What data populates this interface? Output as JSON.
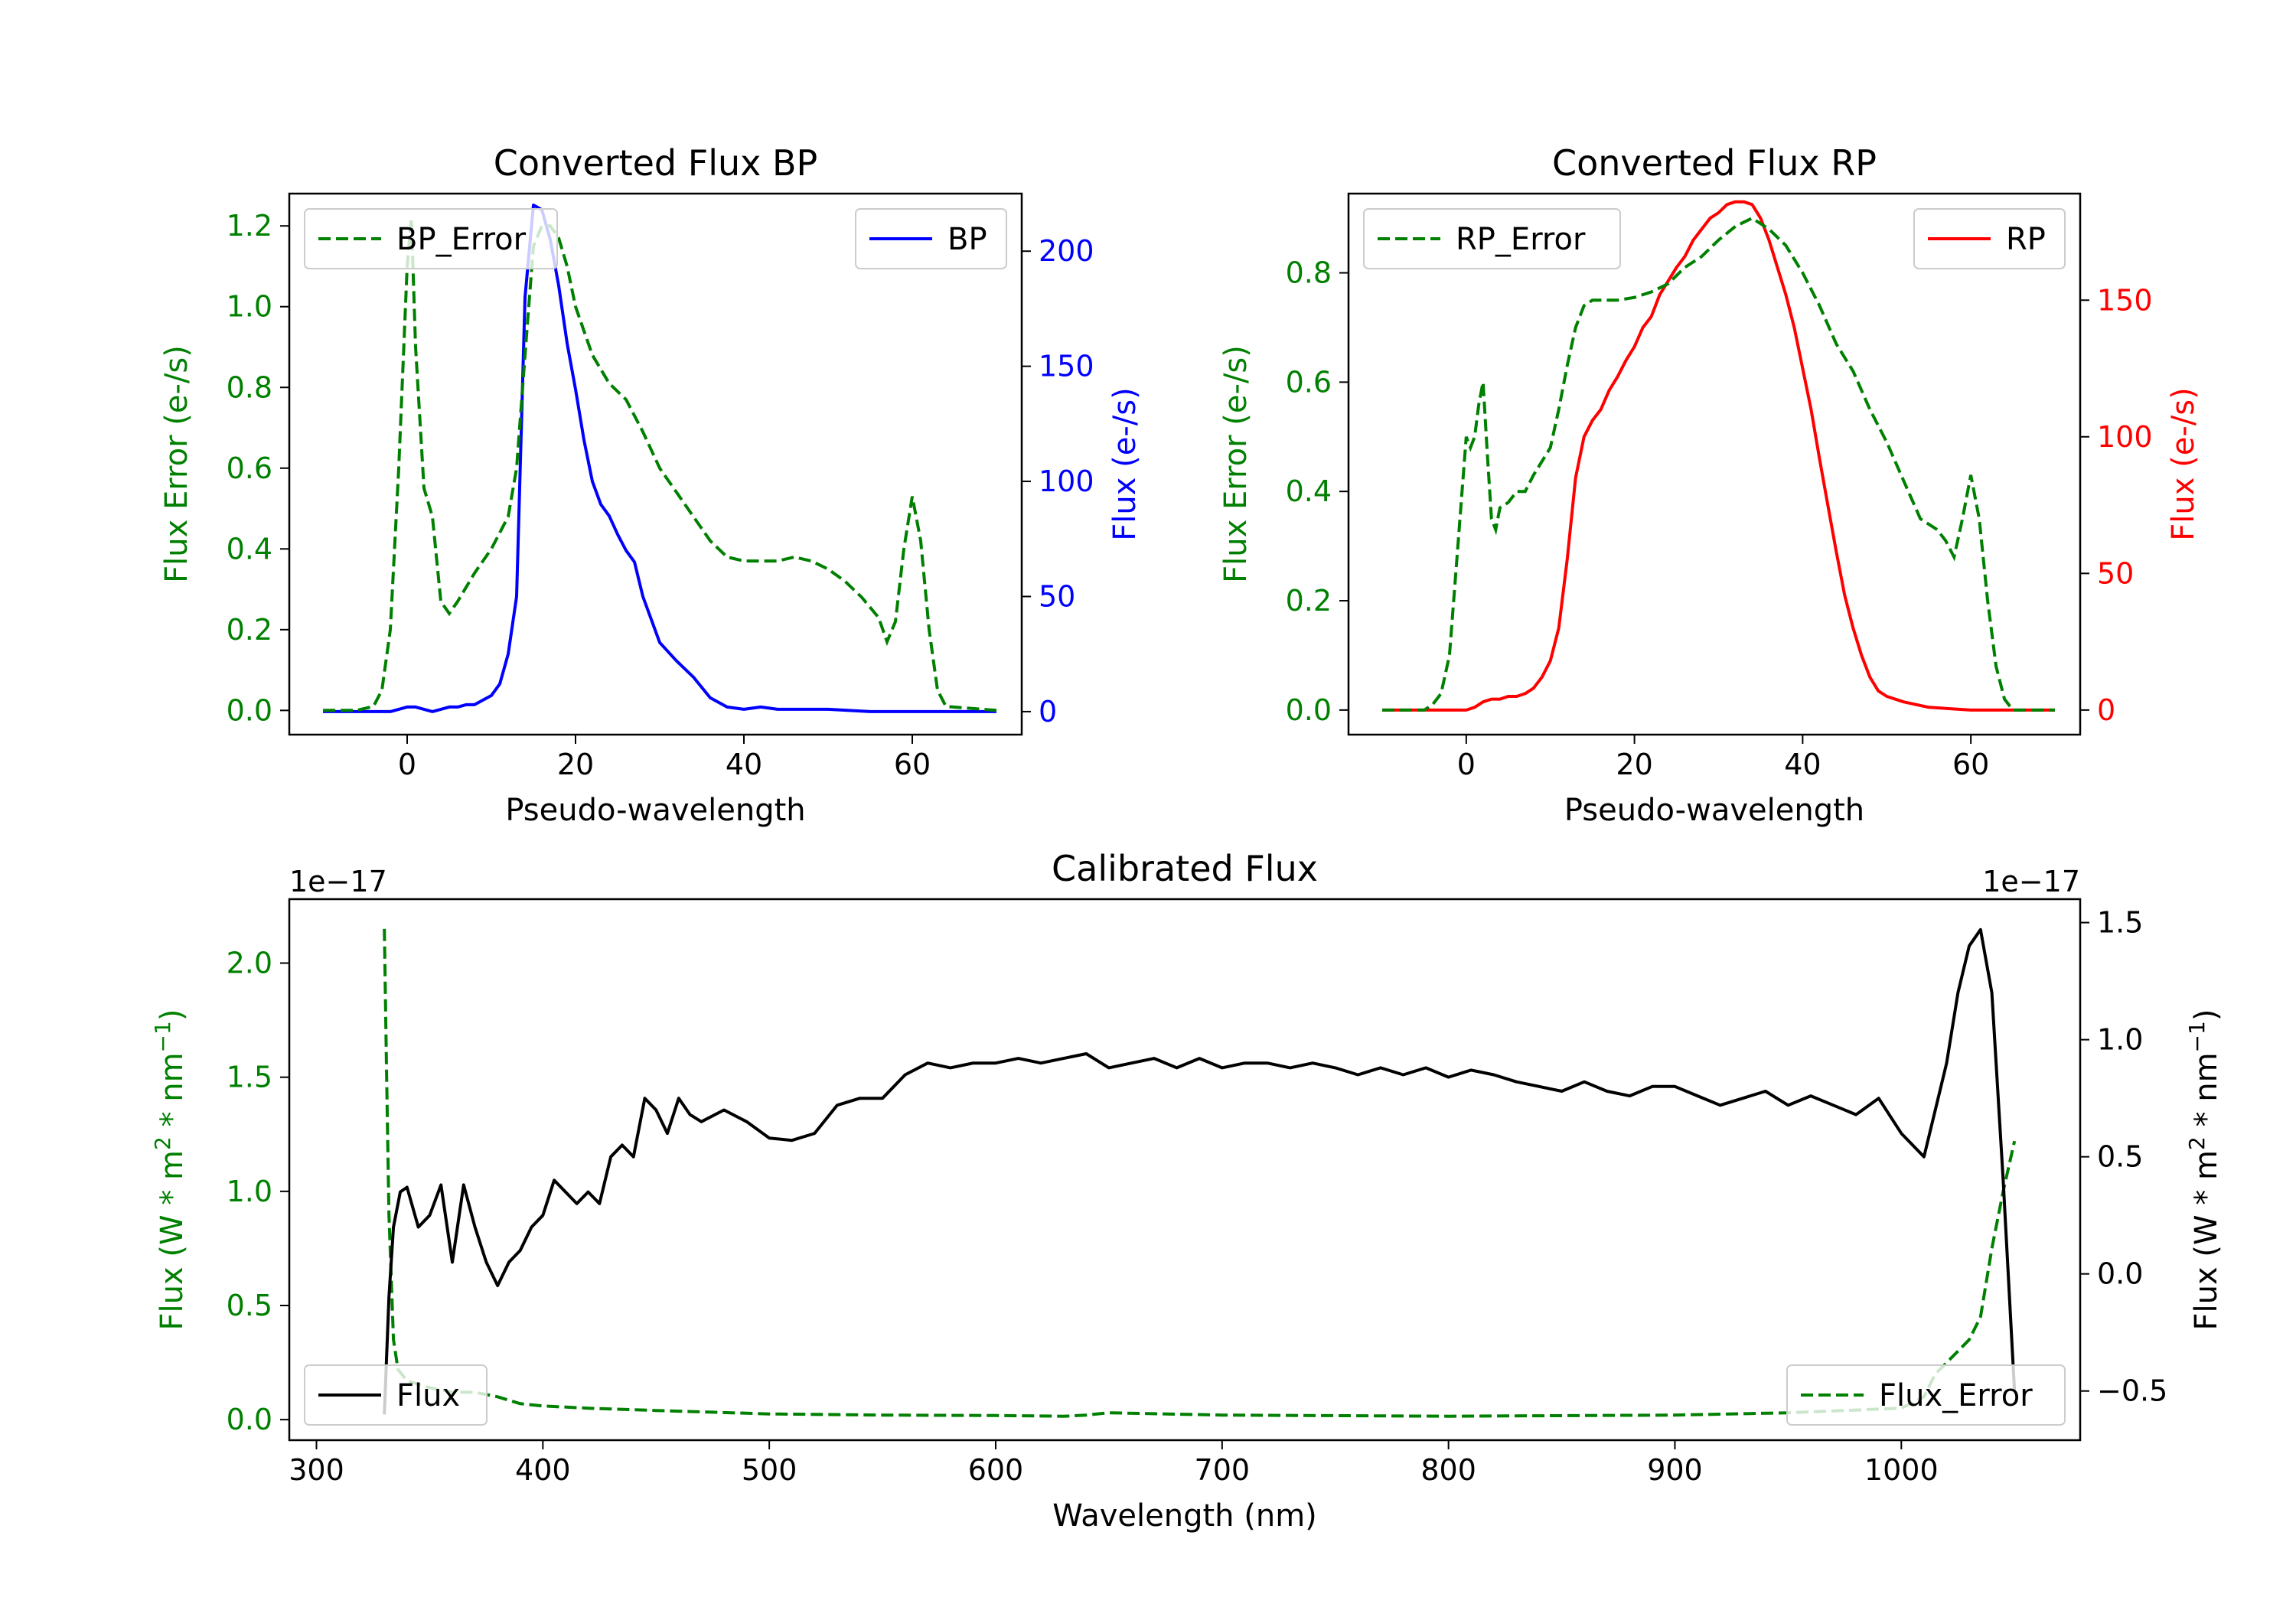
{
  "colors": {
    "bp": "#0000ff",
    "rp": "#ff0000",
    "error": "#008000",
    "flux": "#000000"
  },
  "chart_data": [
    {
      "type": "line",
      "title": "Converted Flux BP",
      "xlabel": "Pseudo-wavelength",
      "ylabel_left": "Flux Error (e-/s)",
      "ylabel_right": "Flux (e-/s)",
      "xlim": [
        -14,
        73
      ],
      "ylim_left": [
        -0.06,
        1.28
      ],
      "ylim_right": [
        -10,
        225
      ],
      "xticks": [
        0,
        20,
        40,
        60
      ],
      "yticks_left": [
        0.0,
        0.2,
        0.4,
        0.6,
        0.8,
        1.0,
        1.2
      ],
      "yticks_right": [
        0,
        50,
        100,
        150,
        200
      ],
      "legend": {
        "left": "BP_Error",
        "right": "BP"
      },
      "series_error": {
        "name": "BP_Error",
        "x": [
          -10,
          -6,
          -4,
          -3,
          -2,
          -1,
          0,
          0.5,
          1,
          2,
          3,
          4,
          5,
          6,
          8,
          10,
          12,
          13,
          14,
          15,
          16,
          17,
          18,
          19,
          20,
          22,
          24,
          26,
          28,
          30,
          32,
          34,
          36,
          38,
          40,
          42,
          44,
          46,
          48,
          50,
          52,
          54,
          56,
          57,
          58,
          59,
          60,
          61,
          62,
          63,
          64,
          70
        ],
        "y": [
          0,
          0,
          0.01,
          0.05,
          0.2,
          0.6,
          1.1,
          1.22,
          0.9,
          0.55,
          0.48,
          0.27,
          0.24,
          0.27,
          0.34,
          0.4,
          0.48,
          0.6,
          0.88,
          1.15,
          1.2,
          1.2,
          1.17,
          1.1,
          1.0,
          0.88,
          0.81,
          0.77,
          0.69,
          0.6,
          0.54,
          0.48,
          0.42,
          0.38,
          0.37,
          0.37,
          0.37,
          0.38,
          0.37,
          0.35,
          0.32,
          0.28,
          0.23,
          0.17,
          0.22,
          0.4,
          0.53,
          0.42,
          0.2,
          0.05,
          0.01,
          0
        ]
      },
      "series_flux": {
        "name": "BP",
        "x": [
          -10,
          -5,
          -2,
          0,
          1,
          2,
          3,
          4,
          5,
          6,
          7,
          8,
          9,
          10,
          11,
          12,
          13,
          14,
          15,
          16,
          17,
          18,
          19,
          20,
          21,
          22,
          23,
          24,
          25,
          26,
          27,
          28,
          29,
          30,
          32,
          34,
          36,
          38,
          40,
          42,
          44,
          46,
          50,
          55,
          60,
          65,
          70
        ],
        "y": [
          0,
          0,
          0,
          2,
          2,
          1,
          0,
          1,
          2,
          2,
          3,
          3,
          5,
          7,
          12,
          25,
          50,
          180,
          220,
          218,
          205,
          185,
          160,
          140,
          118,
          100,
          90,
          85,
          77,
          70,
          65,
          50,
          40,
          30,
          22,
          15,
          6,
          2,
          1,
          2,
          1,
          1,
          1,
          0,
          0,
          0,
          0
        ]
      }
    },
    {
      "type": "line",
      "title": "Converted Flux RP",
      "xlabel": "Pseudo-wavelength",
      "ylabel_left": "Flux Error (e-/s)",
      "ylabel_right": "Flux (e-/s)",
      "xlim": [
        -14,
        73
      ],
      "ylim_left": [
        -0.045,
        0.945
      ],
      "ylim_right": [
        -9,
        189
      ],
      "xticks": [
        0,
        20,
        40,
        60
      ],
      "yticks_left": [
        0.0,
        0.2,
        0.4,
        0.6,
        0.8
      ],
      "yticks_right": [
        0,
        50,
        100,
        150
      ],
      "legend": {
        "left": "RP_Error",
        "right": "RP"
      },
      "series_error": {
        "name": "RP_Error",
        "x": [
          -10,
          -5,
          -4,
          -3,
          -2,
          -1,
          0,
          0.5,
          1,
          1.5,
          2,
          2.5,
          3,
          3.5,
          4,
          5,
          6,
          7,
          8,
          10,
          11,
          12,
          13,
          14,
          15,
          16,
          18,
          20,
          22,
          24,
          26,
          28,
          30,
          32,
          34,
          36,
          38,
          40,
          42,
          44,
          46,
          48,
          50,
          52,
          54,
          55,
          56,
          57,
          58,
          59,
          60,
          61,
          62,
          63,
          64,
          65,
          70
        ],
        "y": [
          0,
          0,
          0.01,
          0.03,
          0.1,
          0.3,
          0.5,
          0.48,
          0.5,
          0.56,
          0.6,
          0.47,
          0.35,
          0.33,
          0.37,
          0.38,
          0.4,
          0.4,
          0.43,
          0.48,
          0.55,
          0.63,
          0.7,
          0.74,
          0.75,
          0.75,
          0.75,
          0.755,
          0.765,
          0.78,
          0.81,
          0.83,
          0.86,
          0.885,
          0.9,
          0.88,
          0.85,
          0.8,
          0.74,
          0.67,
          0.62,
          0.55,
          0.49,
          0.42,
          0.35,
          0.34,
          0.33,
          0.31,
          0.28,
          0.35,
          0.43,
          0.35,
          0.2,
          0.08,
          0.02,
          0,
          0
        ]
      },
      "series_flux": {
        "name": "RP",
        "x": [
          -10,
          -5,
          -2,
          0,
          1,
          2,
          3,
          4,
          5,
          6,
          7,
          8,
          9,
          10,
          11,
          12,
          13,
          14,
          15,
          16,
          17,
          18,
          19,
          20,
          21,
          22,
          23,
          24,
          25,
          26,
          27,
          28,
          29,
          30,
          31,
          32,
          33,
          34,
          35,
          36,
          37,
          38,
          39,
          40,
          41,
          42,
          43,
          44,
          45,
          46,
          47,
          48,
          49,
          50,
          52,
          55,
          60,
          65,
          70
        ],
        "y": [
          0,
          0,
          0,
          0,
          1,
          3,
          4,
          4,
          5,
          5,
          6,
          8,
          12,
          18,
          30,
          55,
          85,
          100,
          106,
          110,
          117,
          122,
          128,
          133,
          140,
          144,
          152,
          157,
          162,
          166,
          172,
          176,
          180,
          182,
          185,
          186,
          186,
          185,
          180,
          172,
          162,
          152,
          140,
          125,
          110,
          92,
          75,
          58,
          42,
          30,
          20,
          12,
          7,
          5,
          3,
          1,
          0,
          0,
          0
        ]
      }
    },
    {
      "type": "line",
      "title": "Calibrated Flux",
      "xlabel": "Wavelength (nm)",
      "ylabel_left": "Flux (W * m^2 * nm^-1)",
      "ylabel_right": "Flux (W * m^2 * nm^-1)",
      "offset_left": "1e−17",
      "offset_right": "1e−17",
      "xlim": [
        288,
        1079
      ],
      "ylim_left": [
        -0.09,
        2.28
      ],
      "ylim_right": [
        -0.71,
        1.6
      ],
      "xticks": [
        300,
        400,
        500,
        600,
        700,
        800,
        900,
        1000
      ],
      "yticks_left": [
        0.0,
        0.5,
        1.0,
        1.5,
        2.0
      ],
      "yticks_right": [
        -0.5,
        0.0,
        0.5,
        1.0,
        1.5
      ],
      "legend": {
        "left": "Flux",
        "right": "Flux_Error"
      },
      "series_flux": {
        "name": "Flux",
        "x": [
          330,
          332,
          334,
          337,
          340,
          345,
          350,
          355,
          360,
          365,
          370,
          375,
          380,
          385,
          390,
          395,
          400,
          405,
          410,
          415,
          420,
          425,
          430,
          435,
          440,
          445,
          450,
          455,
          460,
          465,
          470,
          480,
          490,
          500,
          510,
          520,
          530,
          540,
          550,
          560,
          570,
          580,
          590,
          600,
          610,
          620,
          630,
          640,
          650,
          660,
          670,
          680,
          690,
          700,
          710,
          720,
          730,
          740,
          750,
          760,
          770,
          780,
          790,
          800,
          810,
          820,
          830,
          840,
          850,
          860,
          870,
          880,
          890,
          900,
          910,
          920,
          930,
          940,
          950,
          960,
          970,
          980,
          990,
          1000,
          1005,
          1010,
          1015,
          1020,
          1025,
          1030,
          1035,
          1040,
          1045,
          1050
        ],
        "y": [
          -0.6,
          -0.1,
          0.2,
          0.35,
          0.37,
          0.2,
          0.25,
          0.38,
          0.05,
          0.38,
          0.2,
          0.05,
          -0.05,
          0.05,
          0.1,
          0.2,
          0.25,
          0.4,
          0.35,
          0.3,
          0.35,
          0.3,
          0.5,
          0.55,
          0.5,
          0.75,
          0.7,
          0.6,
          0.75,
          0.68,
          0.65,
          0.7,
          0.65,
          0.58,
          0.57,
          0.6,
          0.72,
          0.75,
          0.75,
          0.85,
          0.9,
          0.88,
          0.9,
          0.9,
          0.92,
          0.9,
          0.92,
          0.94,
          0.88,
          0.9,
          0.92,
          0.88,
          0.92,
          0.88,
          0.9,
          0.9,
          0.88,
          0.9,
          0.88,
          0.85,
          0.88,
          0.85,
          0.88,
          0.84,
          0.87,
          0.85,
          0.82,
          0.8,
          0.78,
          0.82,
          0.78,
          0.76,
          0.8,
          0.8,
          0.76,
          0.72,
          0.75,
          0.78,
          0.72,
          0.76,
          0.72,
          0.68,
          0.75,
          0.6,
          0.55,
          0.5,
          0.7,
          0.9,
          1.2,
          1.4,
          1.47,
          1.2,
          0.4,
          -0.5
        ]
      },
      "series_error": {
        "name": "Flux_Error",
        "x": [
          330,
          331,
          332,
          334,
          336,
          340,
          350,
          360,
          370,
          380,
          390,
          400,
          420,
          450,
          500,
          550,
          600,
          630,
          640,
          650,
          700,
          800,
          900,
          950,
          1000,
          1010,
          1015,
          1020,
          1025,
          1030,
          1035,
          1040,
          1045,
          1050
        ],
        "y": [
          2.15,
          1.5,
          0.9,
          0.35,
          0.22,
          0.17,
          0.14,
          0.12,
          0.12,
          0.1,
          0.07,
          0.06,
          0.05,
          0.04,
          0.025,
          0.02,
          0.018,
          0.015,
          0.02,
          0.03,
          0.02,
          0.015,
          0.02,
          0.03,
          0.05,
          0.1,
          0.2,
          0.25,
          0.3,
          0.35,
          0.45,
          0.75,
          1.0,
          1.22
        ]
      }
    }
  ]
}
